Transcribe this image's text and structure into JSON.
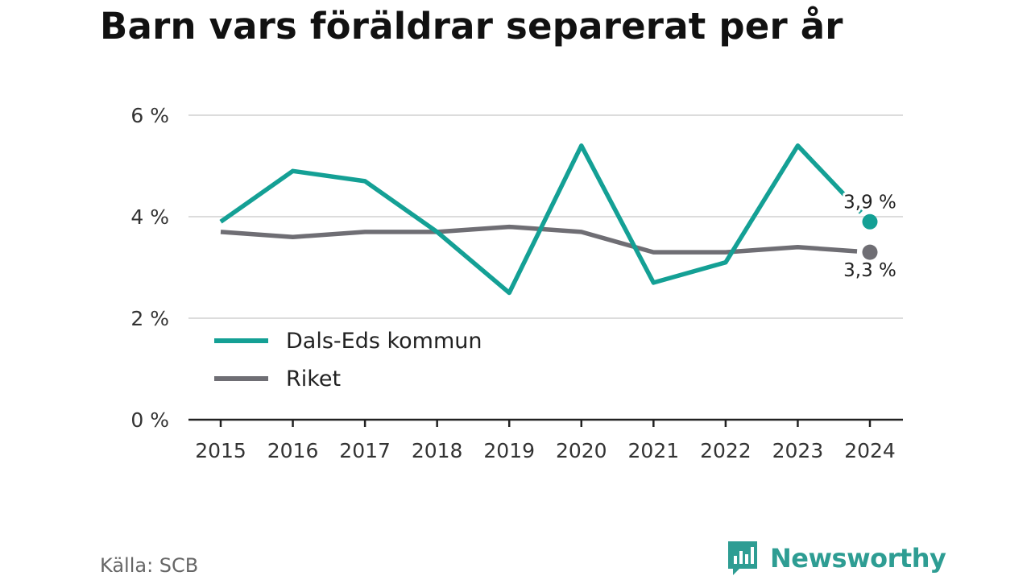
{
  "title": "Barn vars föräldrar separerat per år",
  "source": "Källa: SCB",
  "brand": {
    "name": "Newsworthy",
    "logo": "newsworthy-logo-icon",
    "color": "#2e9d93"
  },
  "chart_data": {
    "type": "line",
    "x": [
      "2015",
      "2016",
      "2017",
      "2018",
      "2019",
      "2020",
      "2021",
      "2022",
      "2023",
      "2024"
    ],
    "ylim": [
      0,
      6
    ],
    "yticks": [
      0,
      2,
      4,
      6
    ],
    "ytick_labels": [
      "0 %",
      "2 %",
      "4 %",
      "6 %"
    ],
    "grid": true,
    "legend_placement": "lower-left",
    "series": [
      {
        "name": "Dals-Eds kommun",
        "color": "#14a095",
        "values": [
          3.9,
          4.9,
          4.7,
          3.7,
          2.5,
          5.4,
          2.7,
          3.1,
          5.4,
          3.9
        ],
        "end_label": "3,9 %"
      },
      {
        "name": "Riket",
        "color": "#6f6e74",
        "values": [
          3.7,
          3.6,
          3.7,
          3.7,
          3.8,
          3.7,
          3.3,
          3.3,
          3.4,
          3.3
        ],
        "end_label": "3,3 %"
      }
    ]
  }
}
